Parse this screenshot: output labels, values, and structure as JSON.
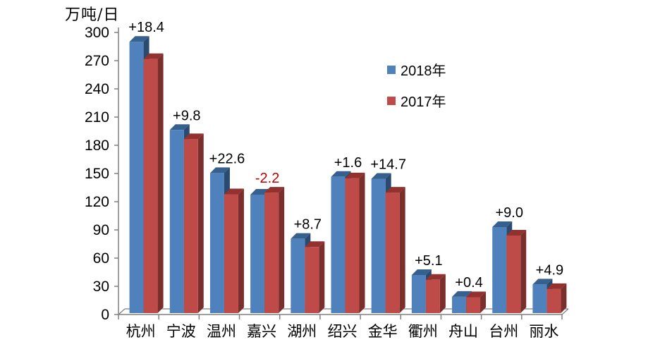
{
  "unit_label": "万吨/日",
  "chart_data": {
    "type": "bar",
    "title": "",
    "ylabel": "万吨/日",
    "xlabel": "",
    "categories": [
      "杭州",
      "宁波",
      "温州",
      "嘉兴",
      "湖州",
      "绍兴",
      "金华",
      "衢州",
      "舟山",
      "台州",
      "丽水"
    ],
    "series": [
      {
        "name": "2018年",
        "color": "#4F81BD",
        "values": [
          288.6,
          194.8,
          149.0,
          126.0,
          79.0,
          144.9,
          142.9,
          40.5,
          17.3,
          91.5,
          30.5
        ]
      },
      {
        "name": "2017年",
        "color": "#BE4B48",
        "values": [
          270.2,
          185.0,
          126.4,
          128.2,
          70.3,
          143.3,
          128.2,
          35.4,
          16.9,
          82.5,
          25.6
        ]
      }
    ],
    "diff_labels": [
      {
        "text": "+18.4",
        "color": "#000000"
      },
      {
        "text": "+9.8",
        "color": "#000000"
      },
      {
        "text": "+22.6",
        "color": "#000000"
      },
      {
        "text": "-2.2",
        "color": "#C00000"
      },
      {
        "text": "+8.7",
        "color": "#000000"
      },
      {
        "text": "+1.6",
        "color": "#000000"
      },
      {
        "text": "+14.7",
        "color": "#000000"
      },
      {
        "text": "+5.1",
        "color": "#000000"
      },
      {
        "text": "+0.4",
        "color": "#000000"
      },
      {
        "text": "+9.0",
        "color": "#000000"
      },
      {
        "text": "+4.9",
        "color": "#000000"
      }
    ],
    "ylim": [
      0,
      300
    ],
    "ytick_step": 30,
    "yticks": [
      0,
      30,
      60,
      90,
      120,
      150,
      180,
      210,
      240,
      270,
      300
    ],
    "grid": false,
    "legend_position": "inside-upper-right",
    "style": "3d-clustered-column",
    "shading": {
      "blue_front": "#4F81BD",
      "blue_side": "#2A4A70",
      "blue_top": "#36618E",
      "red_front": "#BE4B48",
      "red_side": "#7B2F2D",
      "red_top": "#93312F",
      "axis_color": "#808080",
      "text_color": "#000000"
    }
  }
}
